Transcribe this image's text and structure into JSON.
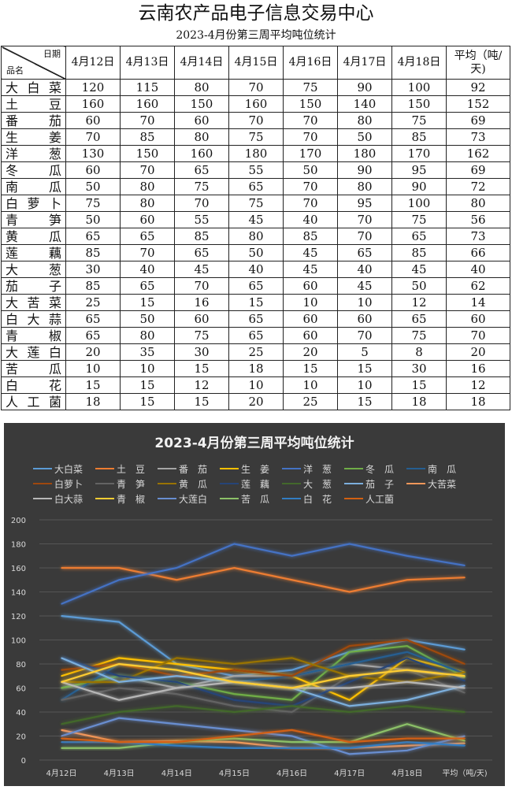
{
  "header": {
    "title": "云南农产品电子信息交易中心",
    "subtitle": "2023-4月份第三周平均吨位统计"
  },
  "table": {
    "corner_top": "日期",
    "corner_bottom": "品名",
    "columns": [
      "4月12日",
      "4月13日",
      "4月14日",
      "4月15日",
      "4月16日",
      "4月17日",
      "4月18日",
      "平均（吨/天)"
    ],
    "rows": [
      {
        "name": "大白菜",
        "values": [
          120,
          115,
          80,
          70,
          75,
          90,
          100,
          92
        ]
      },
      {
        "name": "土　豆",
        "values": [
          160,
          160,
          150,
          160,
          150,
          140,
          150,
          152
        ]
      },
      {
        "name": "番　茄",
        "values": [
          60,
          70,
          60,
          70,
          70,
          80,
          75,
          69
        ]
      },
      {
        "name": "生　姜",
        "values": [
          70,
          85,
          80,
          75,
          70,
          50,
          85,
          73
        ]
      },
      {
        "name": "洋　葱",
        "values": [
          130,
          150,
          160,
          180,
          170,
          180,
          170,
          162
        ]
      },
      {
        "name": "冬　瓜",
        "values": [
          60,
          70,
          65,
          55,
          50,
          90,
          95,
          69
        ]
      },
      {
        "name": "南　瓜",
        "values": [
          50,
          80,
          75,
          65,
          70,
          80,
          90,
          72
        ]
      },
      {
        "name": "白萝卜",
        "values": [
          75,
          80,
          70,
          75,
          70,
          95,
          100,
          80
        ]
      },
      {
        "name": "青　笋",
        "values": [
          50,
          60,
          55,
          45,
          40,
          70,
          75,
          56
        ]
      },
      {
        "name": "黄　瓜",
        "values": [
          65,
          65,
          85,
          80,
          85,
          70,
          65,
          73
        ]
      },
      {
        "name": "莲　藕",
        "values": [
          85,
          70,
          65,
          50,
          45,
          65,
          85,
          66
        ]
      },
      {
        "name": "大　葱",
        "values": [
          30,
          40,
          45,
          40,
          45,
          40,
          45,
          40
        ]
      },
      {
        "name": "茄　子",
        "values": [
          85,
          65,
          70,
          65,
          60,
          45,
          50,
          62
        ]
      },
      {
        "name": "大苦菜",
        "values": [
          25,
          15,
          16,
          15,
          10,
          10,
          12,
          14
        ]
      },
      {
        "name": "白大蒜",
        "values": [
          65,
          50,
          60,
          65,
          60,
          60,
          65,
          60
        ]
      },
      {
        "name": "青　椒",
        "values": [
          65,
          80,
          75,
          65,
          60,
          70,
          75,
          70
        ]
      },
      {
        "name": "大莲白",
        "values": [
          20,
          35,
          30,
          25,
          20,
          5,
          8,
          20
        ]
      },
      {
        "name": "苦　瓜",
        "values": [
          10,
          10,
          15,
          18,
          15,
          15,
          30,
          16
        ]
      },
      {
        "name": "白　花",
        "values": [
          15,
          15,
          12,
          10,
          10,
          10,
          15,
          12
        ]
      },
      {
        "name": "人工菌",
        "values": [
          18,
          15,
          15,
          20,
          25,
          15,
          18,
          18
        ]
      }
    ]
  },
  "chart_data": {
    "type": "line",
    "title": "2023-4月份第三周平均吨位统计",
    "categories": [
      "4月12日",
      "4月13日",
      "4月14日",
      "4月15日",
      "4月16日",
      "4月17日",
      "4月18日",
      "平均（吨/天)"
    ],
    "ylim": [
      0,
      200
    ],
    "ytick_step": 20,
    "grid": true,
    "legend": "top",
    "colors": [
      "#5b9bd5",
      "#ed7d31",
      "#a5a5a5",
      "#ffc000",
      "#4472c4",
      "#70ad47",
      "#255e91",
      "#9e480e",
      "#636363",
      "#997300",
      "#264478",
      "#43682b",
      "#7cafdd",
      "#f1975a",
      "#b7b7b7",
      "#ffcd33",
      "#698ed0",
      "#8cc168",
      "#327dc2",
      "#d26012"
    ]
  }
}
